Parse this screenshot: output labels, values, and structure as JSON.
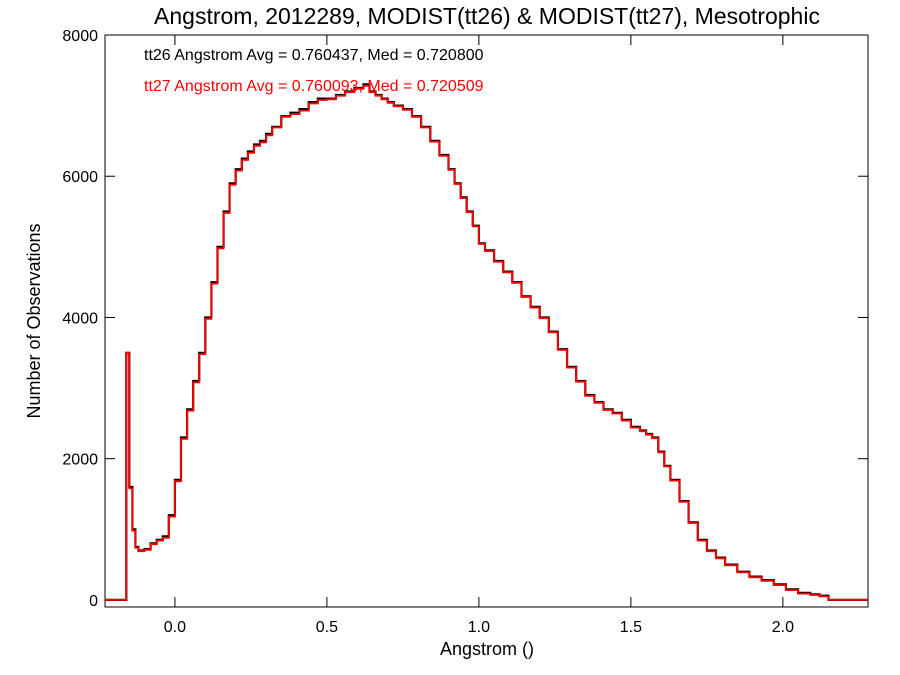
{
  "chart_data": {
    "type": "line",
    "step": true,
    "title": "Angstrom, 2012289, MODIST(tt26) & MODIST(tt27), Mesotrophic",
    "xlabel": "Angstrom ()",
    "ylabel": "Number of Observations",
    "xlim": [
      -0.23,
      2.28
    ],
    "ylim": [
      -100,
      8000
    ],
    "x_ticks": [
      0.0,
      0.5,
      1.0,
      1.5,
      2.0
    ],
    "x_tick_labels": [
      "0.0",
      "0.5",
      "1.0",
      "1.5",
      "2.0"
    ],
    "y_ticks": [
      0,
      2000,
      4000,
      6000,
      8000
    ],
    "y_tick_labels": [
      "0",
      "2000",
      "4000",
      "6000",
      "8000"
    ],
    "grid": false,
    "annotations": [
      {
        "text": "tt26 Angstrom Avg = 0.760437, Med = 0.720800",
        "color": "#000000"
      },
      {
        "text": "tt27 Angstrom Avg = 0.760093, Med = 0.720509",
        "color": "#ff0000"
      }
    ],
    "series": [
      {
        "color": "#000000",
        "x": [
          -0.23,
          -0.16,
          -0.155,
          -0.15,
          -0.14,
          -0.13,
          -0.12,
          -0.1,
          -0.08,
          -0.06,
          -0.04,
          -0.02,
          0.0,
          0.02,
          0.04,
          0.06,
          0.08,
          0.1,
          0.12,
          0.14,
          0.16,
          0.18,
          0.2,
          0.22,
          0.24,
          0.26,
          0.28,
          0.3,
          0.32,
          0.35,
          0.38,
          0.41,
          0.44,
          0.47,
          0.5,
          0.53,
          0.56,
          0.59,
          0.62,
          0.64,
          0.66,
          0.68,
          0.7,
          0.72,
          0.75,
          0.78,
          0.81,
          0.84,
          0.87,
          0.9,
          0.92,
          0.94,
          0.96,
          0.98,
          1.0,
          1.02,
          1.05,
          1.08,
          1.11,
          1.14,
          1.17,
          1.2,
          1.23,
          1.26,
          1.29,
          1.32,
          1.35,
          1.38,
          1.41,
          1.44,
          1.47,
          1.5,
          1.53,
          1.55,
          1.57,
          1.59,
          1.61,
          1.63,
          1.66,
          1.69,
          1.72,
          1.75,
          1.78,
          1.81,
          1.85,
          1.89,
          1.93,
          1.97,
          2.01,
          2.05,
          2.09,
          2.12,
          2.15,
          2.18,
          2.28
        ],
        "y": [
          0,
          3500,
          3500,
          1600,
          1000,
          750,
          700,
          720,
          800,
          850,
          900,
          1200,
          1700,
          2300,
          2700,
          3100,
          3500,
          4000,
          4500,
          5000,
          5500,
          5900,
          6100,
          6250,
          6350,
          6450,
          6500,
          6600,
          6700,
          6850,
          6900,
          6950,
          7050,
          7100,
          7100,
          7150,
          7200,
          7250,
          7300,
          7200,
          7150,
          7100,
          7050,
          7000,
          6950,
          6850,
          6700,
          6500,
          6300,
          6100,
          5900,
          5700,
          5500,
          5300,
          5050,
          4950,
          4800,
          4650,
          4500,
          4300,
          4150,
          4000,
          3800,
          3550,
          3300,
          3100,
          2900,
          2800,
          2700,
          2650,
          2550,
          2450,
          2400,
          2350,
          2300,
          2100,
          1900,
          1700,
          1400,
          1100,
          850,
          700,
          600,
          500,
          400,
          330,
          280,
          220,
          150,
          100,
          80,
          60,
          0,
          0,
          0
        ],
        "values": [
          0,
          3500,
          3500,
          1600,
          1000,
          750,
          700,
          720,
          800,
          850,
          900,
          1200,
          1700,
          2300,
          2700,
          3100,
          3500,
          4000,
          4500,
          5000,
          5500,
          5900,
          6100,
          6250,
          6350,
          6450,
          6500,
          6600,
          6700,
          6850,
          6900,
          6950,
          7050,
          7100,
          7100,
          7150,
          7200,
          7250,
          7300,
          7200,
          7150,
          7100,
          7050,
          7000,
          6950,
          6850,
          6700,
          6500,
          6300,
          6100,
          5900,
          5700,
          5500,
          5300,
          5050,
          4950,
          4800,
          4650,
          4500,
          4300,
          4150,
          4000,
          3800,
          3550,
          3300,
          3100,
          2900,
          2800,
          2700,
          2650,
          2550,
          2450,
          2400,
          2350,
          2300,
          2100,
          1900,
          1700,
          1400,
          1100,
          850,
          700,
          600,
          500,
          400,
          330,
          280,
          220,
          150,
          100,
          80,
          60,
          0,
          0,
          0
        ]
      },
      {
        "color": "#ff0000",
        "x": [
          -0.23,
          -0.16,
          -0.155,
          -0.15,
          -0.14,
          -0.13,
          -0.12,
          -0.1,
          -0.08,
          -0.06,
          -0.04,
          -0.02,
          0.0,
          0.02,
          0.04,
          0.06,
          0.08,
          0.1,
          0.12,
          0.14,
          0.16,
          0.18,
          0.2,
          0.22,
          0.24,
          0.26,
          0.28,
          0.3,
          0.32,
          0.35,
          0.38,
          0.41,
          0.44,
          0.47,
          0.5,
          0.53,
          0.56,
          0.59,
          0.62,
          0.64,
          0.66,
          0.68,
          0.7,
          0.72,
          0.75,
          0.78,
          0.81,
          0.84,
          0.87,
          0.9,
          0.92,
          0.94,
          0.96,
          0.98,
          1.0,
          1.02,
          1.05,
          1.08,
          1.11,
          1.14,
          1.17,
          1.2,
          1.23,
          1.26,
          1.29,
          1.32,
          1.35,
          1.38,
          1.41,
          1.44,
          1.47,
          1.5,
          1.53,
          1.55,
          1.57,
          1.59,
          1.61,
          1.63,
          1.66,
          1.69,
          1.72,
          1.75,
          1.78,
          1.81,
          1.85,
          1.89,
          1.93,
          1.97,
          2.01,
          2.05,
          2.09,
          2.12,
          2.15,
          2.18,
          2.28
        ],
        "y": [
          0,
          3500,
          3500,
          1580,
          980,
          740,
          690,
          710,
          790,
          840,
          880,
          1180,
          1680,
          2280,
          2680,
          3080,
          3480,
          3980,
          4480,
          4980,
          5480,
          5880,
          6080,
          6230,
          6330,
          6430,
          6480,
          6580,
          6690,
          6840,
          6880,
          6930,
          7030,
          7080,
          7090,
          7140,
          7190,
          7240,
          7280,
          7190,
          7140,
          7090,
          7040,
          6990,
          6940,
          6840,
          6690,
          6490,
          6290,
          6090,
          5890,
          5690,
          5490,
          5290,
          5040,
          4940,
          4790,
          4640,
          4490,
          4290,
          4140,
          3990,
          3790,
          3540,
          3290,
          3090,
          2890,
          2790,
          2690,
          2640,
          2540,
          2440,
          2390,
          2340,
          2290,
          2090,
          1890,
          1690,
          1390,
          1090,
          840,
          690,
          590,
          490,
          390,
          320,
          270,
          210,
          140,
          90,
          70,
          50,
          0,
          0,
          0
        ],
        "values": [
          0,
          3500,
          3500,
          1580,
          980,
          740,
          690,
          710,
          790,
          840,
          880,
          1180,
          1680,
          2280,
          2680,
          3080,
          3480,
          3980,
          4480,
          4980,
          5480,
          5880,
          6080,
          6230,
          6330,
          6430,
          6480,
          6580,
          6690,
          6840,
          6880,
          6930,
          7030,
          7080,
          7090,
          7140,
          7190,
          7240,
          7280,
          7190,
          7140,
          7090,
          7040,
          6990,
          6940,
          6840,
          6690,
          6490,
          6290,
          6090,
          5890,
          5690,
          5490,
          5290,
          5040,
          4940,
          4790,
          4640,
          4490,
          4290,
          4140,
          3990,
          3790,
          3540,
          3290,
          3090,
          2890,
          2790,
          2690,
          2640,
          2540,
          2440,
          2390,
          2340,
          2290,
          2090,
          1890,
          1690,
          1390,
          1090,
          840,
          690,
          590,
          490,
          390,
          320,
          270,
          210,
          140,
          90,
          70,
          50,
          0,
          0,
          0
        ]
      }
    ]
  }
}
